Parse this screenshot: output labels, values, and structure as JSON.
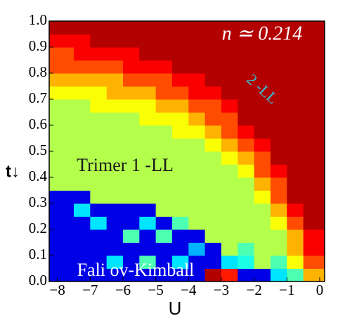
{
  "chart_data": {
    "type": "heatmap",
    "colormap": "jet",
    "zlim": [
      0,
      1
    ],
    "xlabel": "U",
    "ylabel": "t↓",
    "annotations": [
      "n ≃ 0.214",
      "2 -LL",
      "Trimer 1 -LL",
      "Fali  ov-Kimball"
    ],
    "xlim": [
      -8.25,
      0.15
    ],
    "ylim": [
      0,
      1.0
    ],
    "xticks": [
      {
        "value": -8,
        "label": "−8"
      },
      {
        "value": -7,
        "label": "−7"
      },
      {
        "value": -6,
        "label": "−6"
      },
      {
        "value": -5,
        "label": "−5"
      },
      {
        "value": -4,
        "label": "−4"
      },
      {
        "value": -3,
        "label": "−3"
      },
      {
        "value": -2,
        "label": "−2"
      },
      {
        "value": -1,
        "label": "−1"
      },
      0
    ],
    "yticks": [
      {
        "value": 0,
        "label": "0.0"
      },
      0.1,
      0.2,
      0.3,
      0.4,
      0.5,
      0.6,
      0.7,
      0.8,
      0.9,
      {
        "value": 1,
        "label": "1.0"
      }
    ],
    "x": [
      -7.75,
      -7.25,
      -6.75,
      -6.25,
      -5.75,
      -5.25,
      -4.75,
      -4.25,
      -3.75,
      -3.25,
      -2.75,
      -2.25,
      -1.75,
      -1.25,
      -0.75,
      -0.25
    ],
    "y": [
      0.025,
      0.075,
      0.125,
      0.175,
      0.225,
      0.275,
      0.325,
      0.375,
      0.425,
      0.475,
      0.525,
      0.575,
      0.625,
      0.675,
      0.725,
      0.775,
      0.825,
      0.875,
      0.925,
      0.975
    ],
    "z": [
      [
        0.1,
        0.1,
        0.1,
        0.1,
        0.1,
        0.1,
        0.1,
        0.1,
        0.1,
        0.95,
        0.85,
        0.1,
        0.1,
        0.35,
        0.45,
        0.7
      ],
      [
        0.1,
        0.1,
        0.1,
        0.35,
        0.1,
        0.45,
        0.1,
        0.35,
        0.1,
        0.1,
        0.35,
        0.4,
        0.55,
        0.45,
        0.62,
        0.8
      ],
      [
        0.1,
        0.1,
        0.1,
        0.1,
        0.1,
        0.1,
        0.1,
        0.1,
        0.3,
        0.1,
        0.55,
        0.45,
        0.55,
        0.55,
        0.7,
        0.88
      ],
      [
        0.1,
        0.1,
        0.1,
        0.1,
        0.45,
        0.1,
        0.45,
        0.1,
        0.1,
        0.55,
        0.55,
        0.55,
        0.55,
        0.55,
        0.7,
        0.88
      ],
      [
        0.1,
        0.1,
        0.35,
        0.1,
        0.1,
        0.35,
        0.1,
        0.45,
        0.55,
        0.55,
        0.55,
        0.55,
        0.55,
        0.62,
        0.8,
        0.95
      ],
      [
        0.1,
        0.35,
        0.1,
        0.1,
        0.1,
        0.1,
        0.55,
        0.55,
        0.55,
        0.55,
        0.55,
        0.55,
        0.55,
        0.7,
        0.88,
        0.95
      ],
      [
        0.1,
        0.1,
        0.55,
        0.55,
        0.55,
        0.55,
        0.55,
        0.55,
        0.55,
        0.55,
        0.55,
        0.55,
        0.62,
        0.8,
        0.95,
        0.95
      ],
      [
        0.55,
        0.55,
        0.55,
        0.55,
        0.55,
        0.55,
        0.55,
        0.55,
        0.55,
        0.55,
        0.55,
        0.55,
        0.7,
        0.8,
        0.95,
        0.95
      ],
      [
        0.55,
        0.55,
        0.55,
        0.55,
        0.55,
        0.55,
        0.55,
        0.55,
        0.55,
        0.55,
        0.55,
        0.62,
        0.8,
        0.88,
        0.95,
        0.95
      ],
      [
        0.55,
        0.55,
        0.55,
        0.55,
        0.55,
        0.55,
        0.55,
        0.55,
        0.55,
        0.55,
        0.62,
        0.7,
        0.8,
        0.95,
        0.95,
        0.95
      ],
      [
        0.55,
        0.55,
        0.55,
        0.55,
        0.55,
        0.55,
        0.55,
        0.55,
        0.55,
        0.62,
        0.7,
        0.8,
        0.88,
        0.95,
        0.95,
        0.95
      ],
      [
        0.55,
        0.55,
        0.55,
        0.55,
        0.55,
        0.55,
        0.55,
        0.62,
        0.62,
        0.7,
        0.8,
        0.88,
        0.95,
        0.95,
        0.95,
        0.95
      ],
      [
        0.55,
        0.55,
        0.55,
        0.55,
        0.55,
        0.62,
        0.62,
        0.62,
        0.7,
        0.8,
        0.8,
        0.95,
        0.95,
        0.95,
        0.95,
        0.95
      ],
      [
        0.55,
        0.55,
        0.62,
        0.62,
        0.62,
        0.62,
        0.7,
        0.7,
        0.8,
        0.8,
        0.88,
        0.95,
        0.95,
        0.95,
        0.95,
        0.95
      ],
      [
        0.62,
        0.62,
        0.62,
        0.7,
        0.7,
        0.7,
        0.8,
        0.8,
        0.88,
        0.88,
        0.95,
        0.95,
        0.95,
        0.95,
        0.95,
        0.95
      ],
      [
        0.7,
        0.7,
        0.7,
        0.7,
        0.8,
        0.8,
        0.8,
        0.88,
        0.88,
        0.95,
        0.95,
        0.95,
        0.95,
        0.95,
        0.95,
        0.95
      ],
      [
        0.8,
        0.8,
        0.8,
        0.8,
        0.88,
        0.88,
        0.88,
        0.95,
        0.95,
        0.95,
        0.95,
        0.95,
        0.95,
        0.95,
        0.95,
        0.95
      ],
      [
        0.8,
        0.88,
        0.88,
        0.88,
        0.88,
        0.95,
        0.95,
        0.95,
        0.95,
        0.95,
        0.95,
        0.95,
        0.95,
        0.95,
        0.95,
        0.95
      ],
      [
        0.88,
        0.88,
        0.95,
        0.95,
        0.95,
        0.95,
        0.95,
        0.95,
        0.95,
        0.95,
        0.95,
        0.95,
        0.95,
        0.95,
        0.95,
        0.95
      ],
      [
        0.95,
        0.95,
        0.95,
        0.95,
        0.95,
        0.95,
        0.95,
        0.95,
        0.95,
        0.95,
        0.95,
        0.95,
        0.95,
        0.95,
        0.95,
        0.95
      ]
    ]
  }
}
